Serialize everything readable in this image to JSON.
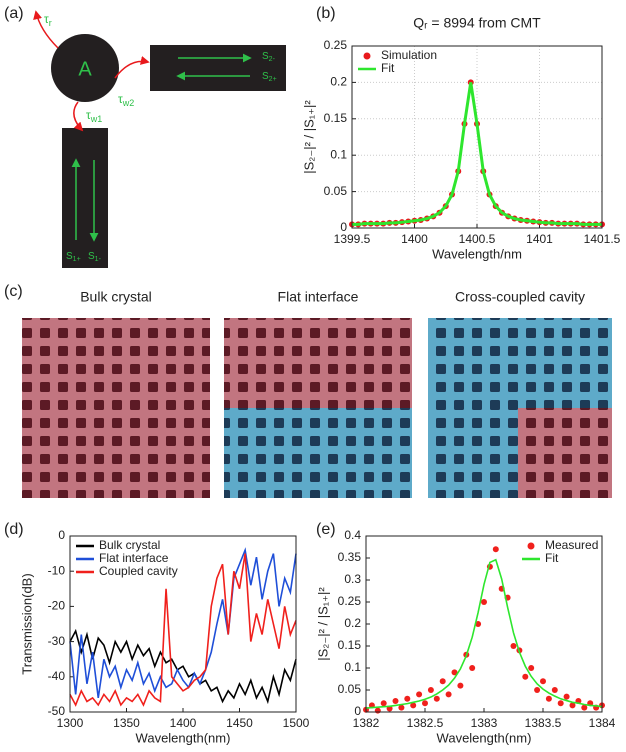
{
  "panel_labels": [
    "(a)",
    "(b)",
    "(c)",
    "(d)",
    "(e)"
  ],
  "diagram": {
    "node": "A",
    "couplings": [
      {
        "text": "τ",
        "sub": "r"
      },
      {
        "text": "τ",
        "sub": "w2"
      },
      {
        "text": "τ",
        "sub": "w1"
      }
    ],
    "ports": [
      {
        "text": "S",
        "sub": "2-"
      },
      {
        "text": "S",
        "sub": "2+"
      },
      {
        "text": "S",
        "sub": "1+"
      },
      {
        "text": "S",
        "sub": "1-"
      }
    ]
  },
  "sem": {
    "titles": [
      "Bulk crystal",
      "Flat interface",
      "Cross-coupled cavity"
    ]
  },
  "chart_data": [
    {
      "type": "line",
      "title": "Qᵣ = 8994 from CMT",
      "x_label": "Wavelength/nm",
      "y_label": "|S₂₋|² / |S₁₊|²",
      "x": [
        1399.5,
        1399.55,
        1399.6,
        1399.65,
        1399.7,
        1399.75,
        1399.8,
        1399.85,
        1399.9,
        1399.95,
        1400,
        1400.05,
        1400.1,
        1400.15,
        1400.2,
        1400.25,
        1400.3,
        1400.35,
        1400.4,
        1400.45,
        1400.5,
        1400.55,
        1400.6,
        1400.65,
        1400.7,
        1400.75,
        1400.8,
        1400.85,
        1400.9,
        1400.95,
        1401,
        1401.05,
        1401.1,
        1401.15,
        1401.2,
        1401.25,
        1401.3,
        1401.35,
        1401.4,
        1401.45,
        1401.5
      ],
      "series": [
        {
          "name": "Simulation",
          "color": "#e8191c",
          "mode": "markers",
          "values": [
            0.005,
            0.005,
            0.006,
            0.006,
            0.006,
            0.006,
            0.007,
            0.007,
            0.008,
            0.009,
            0.01,
            0.011,
            0.013,
            0.016,
            0.021,
            0.03,
            0.046,
            0.078,
            0.143,
            0.2,
            0.143,
            0.078,
            0.046,
            0.03,
            0.021,
            0.016,
            0.013,
            0.011,
            0.01,
            0.009,
            0.008,
            0.007,
            0.007,
            0.006,
            0.006,
            0.006,
            0.006,
            0.005,
            0.005,
            0.005,
            0.005
          ]
        },
        {
          "name": "Fit",
          "color": "#2ee62e",
          "mode": "line",
          "values": [
            0.005,
            0.005,
            0.006,
            0.006,
            0.006,
            0.006,
            0.007,
            0.007,
            0.008,
            0.009,
            0.01,
            0.011,
            0.013,
            0.016,
            0.021,
            0.03,
            0.046,
            0.078,
            0.143,
            0.2,
            0.143,
            0.078,
            0.046,
            0.03,
            0.021,
            0.016,
            0.013,
            0.011,
            0.01,
            0.009,
            0.008,
            0.007,
            0.007,
            0.006,
            0.006,
            0.006,
            0.006,
            0.005,
            0.005,
            0.005,
            0.005
          ]
        }
      ],
      "xlim": [
        1399.5,
        1401.5
      ],
      "xticks": [
        1399.5,
        1400,
        1400.5,
        1401,
        1401.5
      ],
      "ylim": [
        0,
        0.25
      ],
      "yticks": [
        0,
        0.05,
        0.1,
        0.15,
        0.2,
        0.25
      ],
      "grid": true,
      "legend": "upper left"
    },
    {
      "type": "line",
      "x_label": "Wavelength(nm)",
      "y_label": "Transmission(dB)",
      "x": [
        1300,
        1305,
        1310,
        1315,
        1320,
        1325,
        1330,
        1335,
        1340,
        1345,
        1350,
        1355,
        1360,
        1365,
        1370,
        1375,
        1380,
        1385,
        1390,
        1395,
        1400,
        1405,
        1410,
        1415,
        1420,
        1425,
        1430,
        1435,
        1440,
        1445,
        1450,
        1455,
        1460,
        1465,
        1470,
        1475,
        1480,
        1485,
        1490,
        1495,
        1500
      ],
      "series": [
        {
          "name": "Bulk crystal",
          "color": "#000000",
          "mode": "line",
          "values": [
            -30,
            -27,
            -33,
            -28,
            -35,
            -29,
            -31,
            -36,
            -30,
            -33,
            -30,
            -35,
            -31,
            -34,
            -32,
            -37,
            -33,
            -36,
            -35,
            -38,
            -37,
            -40,
            -39,
            -42,
            -41,
            -44,
            -43,
            -47,
            -44,
            -46,
            -42,
            -45,
            -41,
            -46,
            -43,
            -47,
            -40,
            -45,
            -38,
            -41,
            -35
          ]
        },
        {
          "name": "Flat interface",
          "color": "#1f4fd8",
          "mode": "line",
          "values": [
            -30,
            -45,
            -28,
            -42,
            -33,
            -46,
            -35,
            -40,
            -37,
            -43,
            -38,
            -41,
            -36,
            -42,
            -39,
            -44,
            -40,
            -43,
            -42,
            -38,
            -41,
            -43,
            -39,
            -42,
            -38,
            -33,
            -25,
            -18,
            -28,
            -12,
            -8,
            -4,
            -14,
            -6,
            -18,
            -10,
            -5,
            -20,
            -12,
            -16,
            -5
          ]
        },
        {
          "name": "Coupled cavity",
          "color": "#f0201c",
          "mode": "line",
          "values": [
            -45,
            -48,
            -44,
            -47,
            -46,
            -48,
            -45,
            -47,
            -44,
            -48,
            -46,
            -47,
            -45,
            -48,
            -44,
            -46,
            -47,
            -15,
            -40,
            -42,
            -44,
            -43,
            -41,
            -40,
            -38,
            -20,
            -12,
            -8,
            -28,
            -10,
            -15,
            -5,
            -30,
            -22,
            -28,
            -18,
            -25,
            -32,
            -20,
            -28,
            -24
          ]
        }
      ],
      "xlim": [
        1300,
        1500
      ],
      "xticks": [
        1300,
        1350,
        1400,
        1450,
        1500
      ],
      "ylim": [
        -50,
        0
      ],
      "yticks": [
        -50,
        -40,
        -30,
        -20,
        -10,
        0
      ],
      "grid": false,
      "legend": "upper left"
    },
    {
      "type": "line",
      "x_label": "Wavelength(nm)",
      "y_label": "|S₂₋|² / |S₁₊|²",
      "x": [
        1382,
        1382.05,
        1382.1,
        1382.15,
        1382.2,
        1382.25,
        1382.3,
        1382.35,
        1382.4,
        1382.45,
        1382.5,
        1382.55,
        1382.6,
        1382.65,
        1382.7,
        1382.75,
        1382.8,
        1382.85,
        1382.9,
        1382.95,
        1383,
        1383.05,
        1383.1,
        1383.15,
        1383.2,
        1383.25,
        1383.3,
        1383.35,
        1383.4,
        1383.45,
        1383.5,
        1383.55,
        1383.6,
        1383.65,
        1383.7,
        1383.75,
        1383.8,
        1383.85,
        1383.9,
        1383.95,
        1384
      ],
      "series": [
        {
          "name": "Measured",
          "color": "#f0201c",
          "mode": "markers",
          "values": [
            0.005,
            0.015,
            0.003,
            0.02,
            0.008,
            0.025,
            0.01,
            0.03,
            0.015,
            0.04,
            0.02,
            0.05,
            0.03,
            0.07,
            0.04,
            0.09,
            0.06,
            0.13,
            0.1,
            0.2,
            0.25,
            0.33,
            0.37,
            0.28,
            0.26,
            0.15,
            0.14,
            0.08,
            0.1,
            0.05,
            0.07,
            0.03,
            0.05,
            0.02,
            0.035,
            0.015,
            0.025,
            0.01,
            0.02,
            0.01,
            0.015
          ]
        },
        {
          "name": "Fit",
          "color": "#2ee62e",
          "mode": "line",
          "values": [
            0.009,
            0.01,
            0.011,
            0.012,
            0.013,
            0.015,
            0.017,
            0.019,
            0.022,
            0.025,
            0.029,
            0.034,
            0.041,
            0.05,
            0.061,
            0.077,
            0.098,
            0.128,
            0.17,
            0.226,
            0.29,
            0.34,
            0.346,
            0.302,
            0.238,
            0.18,
            0.136,
            0.104,
            0.081,
            0.064,
            0.052,
            0.043,
            0.036,
            0.03,
            0.026,
            0.022,
            0.02,
            0.017,
            0.015,
            0.014,
            0.012
          ]
        }
      ],
      "xlim": [
        1382,
        1384
      ],
      "xticks": [
        1382,
        1382.5,
        1383,
        1383.5,
        1384
      ],
      "ylim": [
        0,
        0.4
      ],
      "yticks": [
        0,
        0.05,
        0.1,
        0.15,
        0.2,
        0.25,
        0.3,
        0.35,
        0.4
      ],
      "grid": false,
      "legend": "upper right"
    }
  ]
}
